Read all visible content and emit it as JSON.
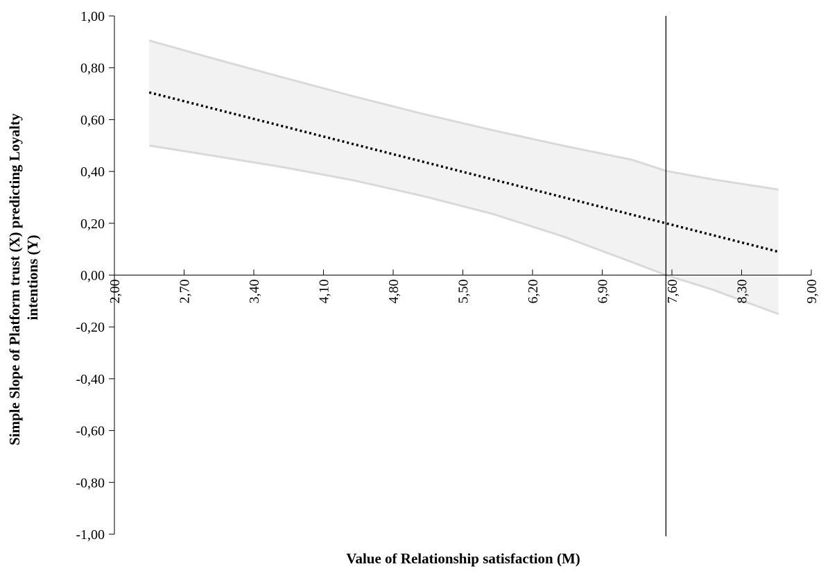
{
  "chart_data": {
    "type": "line",
    "title": "",
    "xlabel": "Value of Relationship satisfaction (M)",
    "ylabel": "Simple Slope of Platform trust (X) predicting Loyalty intentions (Y)",
    "ylabel_lines": [
      "Simple Slope of Platform trust (X) predicting Loyalty",
      "intentions (Y)"
    ],
    "xlim": [
      2.0,
      9.0
    ],
    "ylim": [
      -1.0,
      1.0
    ],
    "x_ticks": [
      2.0,
      2.7,
      3.4,
      4.1,
      4.8,
      5.5,
      6.2,
      6.9,
      7.6,
      8.3,
      9.0
    ],
    "x_tick_labels": [
      "2,00",
      "2,70",
      "3,40",
      "4,10",
      "4,80",
      "5,50",
      "6,20",
      "6,90",
      "7,60",
      "8,30",
      "9,00"
    ],
    "y_ticks": [
      1.0,
      0.8,
      0.6,
      0.4,
      0.2,
      0.0,
      -0.2,
      -0.4,
      -0.6,
      -0.8,
      -1.0
    ],
    "y_tick_labels": [
      "1,00",
      "0,80",
      "0,60",
      "0,40",
      "0,20",
      "0,00",
      "-0,20",
      "-0,40",
      "-0,60",
      "-0,80",
      "-1,00"
    ],
    "grid": false,
    "legend": "none",
    "series": [
      {
        "role": "upper-confidence-bound",
        "color": "#d9d9d9",
        "x": [
          2.35,
          3.0,
          3.7,
          4.4,
          5.1,
          5.8,
          6.5,
          7.2,
          7.54,
          8.0,
          8.67
        ],
        "y": [
          0.905,
          0.835,
          0.762,
          0.69,
          0.622,
          0.559,
          0.5,
          0.445,
          0.402,
          0.37,
          0.33
        ]
      },
      {
        "role": "simple-slope",
        "color": "#000000",
        "style": "dotted",
        "x": [
          2.35,
          8.67
        ],
        "y": [
          0.705,
          0.09
        ]
      },
      {
        "role": "lower-confidence-bound",
        "color": "#d9d9d9",
        "x": [
          2.35,
          3.0,
          3.7,
          4.4,
          5.1,
          5.8,
          6.5,
          7.2,
          7.54,
          8.0,
          8.67
        ],
        "y": [
          0.5,
          0.46,
          0.416,
          0.366,
          0.305,
          0.236,
          0.15,
          0.05,
          0.0,
          -0.055,
          -0.15
        ]
      }
    ],
    "band_fill": "#f2f2f2",
    "reference_line": {
      "x": 7.54,
      "color": "#000000"
    }
  }
}
